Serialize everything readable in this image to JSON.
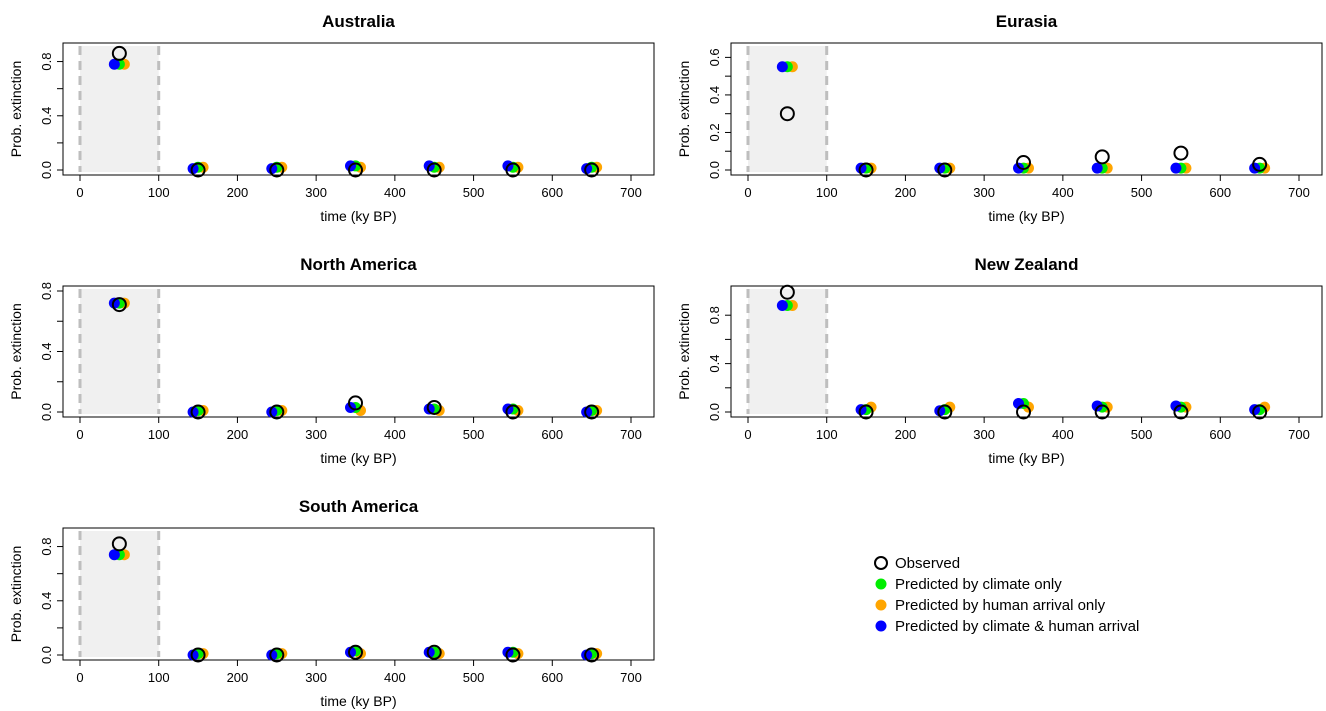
{
  "chart_data": [
    {
      "type": "scatter",
      "title": "Australia",
      "xlabel": "time (ky BP)",
      "ylabel": "Prob. extinction",
      "xlim": [
        0,
        700
      ],
      "ylim": [
        0,
        0.9
      ],
      "xticks": [
        "0",
        "100",
        "200",
        "300",
        "400",
        "500",
        "600",
        "700"
      ],
      "yticks": [
        "0.0",
        "0.4",
        "0.8"
      ],
      "shaded_region": [
        0,
        100
      ],
      "x": [
        50,
        150,
        250,
        350,
        450,
        550,
        650
      ],
      "series": [
        {
          "name": "Observed",
          "values": [
            0.86,
            0.0,
            0.0,
            0.0,
            0.0,
            0.0,
            0.0
          ]
        },
        {
          "name": "Predicted by climate only",
          "values": [
            0.78,
            0.02,
            0.02,
            0.03,
            0.02,
            0.02,
            0.02
          ]
        },
        {
          "name": "Predicted by human arrival only",
          "values": [
            0.78,
            0.02,
            0.02,
            0.02,
            0.02,
            0.02,
            0.02
          ]
        },
        {
          "name": "Predicted by climate & human arrival",
          "values": [
            0.78,
            0.01,
            0.01,
            0.03,
            0.03,
            0.03,
            0.01
          ]
        }
      ]
    },
    {
      "type": "scatter",
      "title": "Eurasia",
      "xlabel": "time (ky BP)",
      "ylabel": "Prob. extinction",
      "xlim": [
        0,
        700
      ],
      "ylim": [
        0,
        0.65
      ],
      "xticks": [
        "0",
        "100",
        "200",
        "300",
        "400",
        "500",
        "600",
        "700"
      ],
      "yticks": [
        "0.0",
        "0.2",
        "0.4",
        "0.6"
      ],
      "shaded_region": [
        0,
        100
      ],
      "x": [
        50,
        150,
        250,
        350,
        450,
        550,
        650
      ],
      "series": [
        {
          "name": "Observed",
          "values": [
            0.3,
            0.0,
            0.0,
            0.04,
            0.07,
            0.09,
            0.03
          ]
        },
        {
          "name": "Predicted by climate only",
          "values": [
            0.55,
            0.01,
            0.01,
            0.01,
            0.01,
            0.01,
            0.01
          ]
        },
        {
          "name": "Predicted by human arrival only",
          "values": [
            0.55,
            0.01,
            0.01,
            0.01,
            0.01,
            0.01,
            0.01
          ]
        },
        {
          "name": "Predicted by climate & human arrival",
          "values": [
            0.55,
            0.01,
            0.01,
            0.01,
            0.01,
            0.01,
            0.01
          ]
        }
      ]
    },
    {
      "type": "scatter",
      "title": "North America",
      "xlabel": "time (ky BP)",
      "ylabel": "Prob. extinction",
      "xlim": [
        0,
        700
      ],
      "ylim": [
        0,
        0.8
      ],
      "xticks": [
        "0",
        "100",
        "200",
        "300",
        "400",
        "500",
        "600",
        "700"
      ],
      "yticks": [
        "0.0",
        "0.4",
        "0.8"
      ],
      "shaded_region": [
        0,
        100
      ],
      "x": [
        50,
        150,
        250,
        350,
        450,
        550,
        650
      ],
      "series": [
        {
          "name": "Observed",
          "values": [
            0.71,
            0.0,
            0.0,
            0.06,
            0.03,
            0.0,
            0.0
          ]
        },
        {
          "name": "Predicted by climate only",
          "values": [
            0.72,
            0.01,
            0.01,
            0.03,
            0.02,
            0.02,
            0.01
          ]
        },
        {
          "name": "Predicted by human arrival only",
          "values": [
            0.72,
            0.01,
            0.01,
            0.01,
            0.01,
            0.01,
            0.01
          ]
        },
        {
          "name": "Predicted by climate & human arrival",
          "values": [
            0.72,
            0.0,
            0.0,
            0.03,
            0.02,
            0.02,
            0.0
          ]
        }
      ]
    },
    {
      "type": "scatter",
      "title": "New Zealand",
      "xlabel": "time (ky BP)",
      "ylabel": "Prob. extinction",
      "xlim": [
        0,
        700
      ],
      "ylim": [
        0,
        1.0
      ],
      "xticks": [
        "0",
        "100",
        "200",
        "300",
        "400",
        "500",
        "600",
        "700"
      ],
      "yticks": [
        "0.0",
        "0.4",
        "0.8"
      ],
      "shaded_region": [
        0,
        100
      ],
      "x": [
        50,
        150,
        250,
        350,
        450,
        550,
        650
      ],
      "series": [
        {
          "name": "Observed",
          "values": [
            0.99,
            0.0,
            0.0,
            0.0,
            0.0,
            0.0,
            0.0
          ]
        },
        {
          "name": "Predicted by climate only",
          "values": [
            0.88,
            0.02,
            0.02,
            0.07,
            0.04,
            0.04,
            0.02
          ]
        },
        {
          "name": "Predicted by human arrival only",
          "values": [
            0.88,
            0.04,
            0.04,
            0.04,
            0.04,
            0.04,
            0.04
          ]
        },
        {
          "name": "Predicted by climate & human arrival",
          "values": [
            0.88,
            0.02,
            0.01,
            0.07,
            0.05,
            0.05,
            0.02
          ]
        }
      ]
    },
    {
      "type": "scatter",
      "title": "South America",
      "xlabel": "time (ky BP)",
      "ylabel": "Prob. extinction",
      "xlim": [
        0,
        700
      ],
      "ylim": [
        0,
        0.9
      ],
      "xticks": [
        "0",
        "100",
        "200",
        "300",
        "400",
        "500",
        "600",
        "700"
      ],
      "yticks": [
        "0.0",
        "0.4",
        "0.8"
      ],
      "shaded_region": [
        0,
        100
      ],
      "x": [
        50,
        150,
        250,
        350,
        450,
        550,
        650
      ],
      "series": [
        {
          "name": "Observed",
          "values": [
            0.82,
            0.0,
            0.0,
            0.02,
            0.02,
            0.0,
            0.0
          ]
        },
        {
          "name": "Predicted by climate only",
          "values": [
            0.74,
            0.01,
            0.01,
            0.03,
            0.02,
            0.02,
            0.01
          ]
        },
        {
          "name": "Predicted by human arrival only",
          "values": [
            0.74,
            0.01,
            0.01,
            0.01,
            0.01,
            0.01,
            0.01
          ]
        },
        {
          "name": "Predicted by climate & human arrival",
          "values": [
            0.74,
            0.0,
            0.0,
            0.02,
            0.02,
            0.02,
            0.0
          ]
        }
      ]
    }
  ],
  "legend": {
    "placement": "bottom-right",
    "entries": [
      {
        "label": "Observed",
        "marker": "open-circle",
        "color": "#000000"
      },
      {
        "label": "Predicted by climate only",
        "marker": "filled-circle",
        "color": "#00ee00"
      },
      {
        "label": "Predicted by human arrival only",
        "marker": "filled-circle",
        "color": "#ffa500"
      },
      {
        "label": "Predicted by climate & human arrival",
        "marker": "filled-circle",
        "color": "#0000ff"
      }
    ]
  },
  "colors": {
    "observed": "#000000",
    "climate": "#00ee00",
    "human": "#ffa500",
    "both": "#0000ff",
    "shade": "#f0f0f0",
    "shade_border": "#bebebe"
  }
}
